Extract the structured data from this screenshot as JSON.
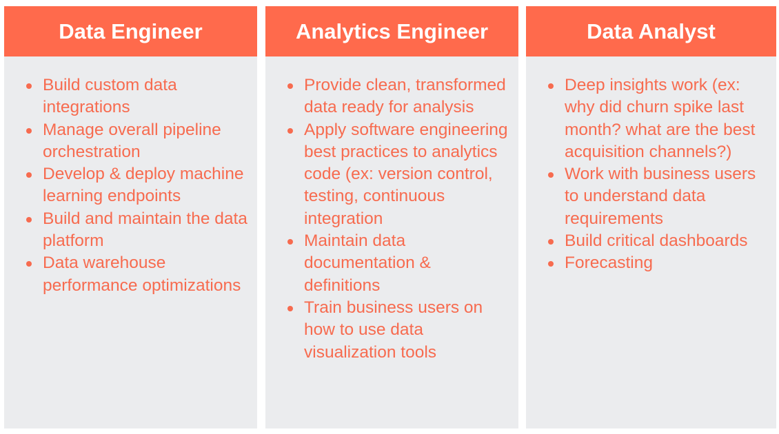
{
  "columns": [
    {
      "title": "Data Engineer",
      "items": [
        "Build custom data integrations",
        "Manage overall pipeline orchestration",
        "Develop & deploy machine learning endpoints",
        "Build and maintain the data platform",
        "Data warehouse performance optimizations"
      ]
    },
    {
      "title": "Analytics Engineer",
      "items": [
        "Provide clean, transformed data ready for analysis",
        "Apply software engineering best practices to analytics code (ex: version control, testing, continuous integration",
        "Maintain data documentation & definitions",
        "Train business users on how to use data visualization  tools"
      ]
    },
    {
      "title": "Data Analyst",
      "items": [
        "Deep insights work (ex: why did churn spike last month? what are the best acquisition channels?)",
        "Work with business users to understand data requirements",
        "Build critical dashboards",
        "Forecasting"
      ]
    }
  ],
  "colors": {
    "header": "#FF6A4C",
    "text": "#F76B4F",
    "panel": "#EBECEE"
  }
}
